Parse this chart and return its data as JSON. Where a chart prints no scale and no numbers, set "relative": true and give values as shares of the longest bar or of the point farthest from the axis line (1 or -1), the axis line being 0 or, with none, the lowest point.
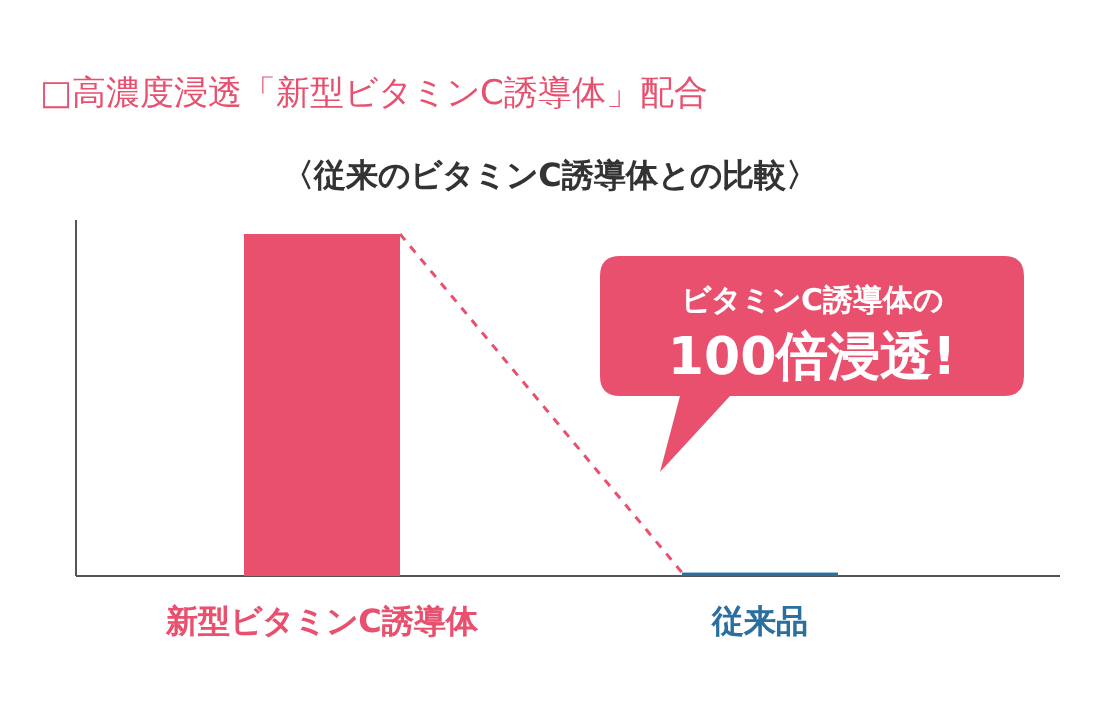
{
  "chart_data": {
    "type": "bar",
    "title": "□高濃度浸透「新型ビタミンC誘導体」配合",
    "subtitle": "〈従来のビタミンC誘導体との比較〉",
    "categories": [
      "新型ビタミンC誘導体",
      "従来品"
    ],
    "values": [
      1,
      0.01
    ],
    "colors": [
      "#e8506e",
      "#2a6f9e"
    ],
    "relative": true,
    "annotations": [
      "ビタミンC誘導体の\n100倍浸透!"
    ]
  }
}
